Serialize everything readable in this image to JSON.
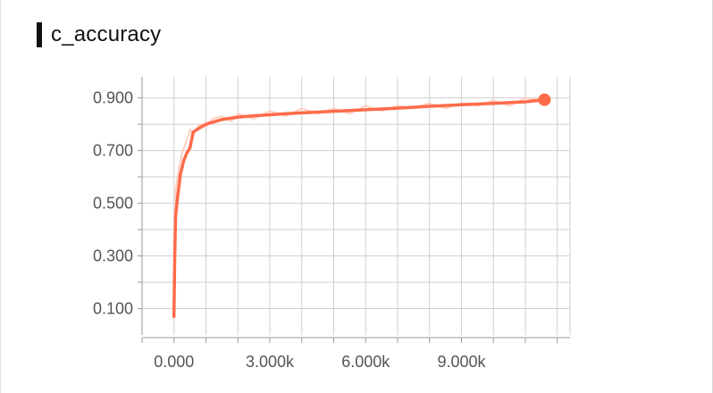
{
  "title": "c_accuracy",
  "colors": {
    "line": "#ff6b4a",
    "raw_line": "#ffc9b8",
    "grid": "#cfcfcf",
    "axis": "#9a9a9a",
    "text": "#555555",
    "title": "#111111"
  },
  "chart_data": {
    "type": "line",
    "title": "c_accuracy",
    "xlabel": "",
    "ylabel": "",
    "grid": true,
    "xlim": [
      -1000,
      12400
    ],
    "ylim": [
      0.0,
      0.98
    ],
    "x_ticks": [
      0,
      3000,
      6000,
      9000
    ],
    "x_tick_labels": [
      "0.000",
      "3.000k",
      "6.000k",
      "9.000k"
    ],
    "y_ticks": [
      0.1,
      0.3,
      0.5,
      0.7,
      0.9
    ],
    "y_tick_labels": [
      "0.100",
      "0.300",
      "0.500",
      "0.700",
      "0.900"
    ],
    "series": [
      {
        "role": "smoothed",
        "x": [
          0,
          20,
          50,
          100,
          150,
          200,
          300,
          400,
          500,
          600,
          800,
          1000,
          1500,
          2000,
          2500,
          3000,
          3500,
          4000,
          5000,
          6000,
          7000,
          8000,
          9000,
          10000,
          11000,
          11600
        ],
        "y": [
          0.07,
          0.28,
          0.45,
          0.51,
          0.56,
          0.61,
          0.66,
          0.69,
          0.71,
          0.77,
          0.786,
          0.8,
          0.818,
          0.827,
          0.832,
          0.836,
          0.84,
          0.843,
          0.849,
          0.855,
          0.861,
          0.868,
          0.874,
          0.879,
          0.885,
          0.893
        ]
      },
      {
        "role": "raw",
        "x": [
          0,
          50,
          150,
          250,
          400,
          500,
          600,
          800,
          1000,
          1200,
          1500,
          1800,
          2000,
          2500,
          3000,
          3500,
          4000,
          4500,
          5000,
          5500,
          6000,
          6500,
          7000,
          7500,
          8000,
          8500,
          9000,
          9500,
          10000,
          10500,
          11000,
          11600
        ],
        "y": [
          0.1,
          0.55,
          0.63,
          0.69,
          0.74,
          0.78,
          0.76,
          0.8,
          0.79,
          0.82,
          0.83,
          0.81,
          0.84,
          0.82,
          0.85,
          0.83,
          0.86,
          0.84,
          0.86,
          0.84,
          0.87,
          0.85,
          0.87,
          0.86,
          0.88,
          0.86,
          0.88,
          0.87,
          0.89,
          0.87,
          0.9,
          0.89
        ]
      }
    ]
  }
}
